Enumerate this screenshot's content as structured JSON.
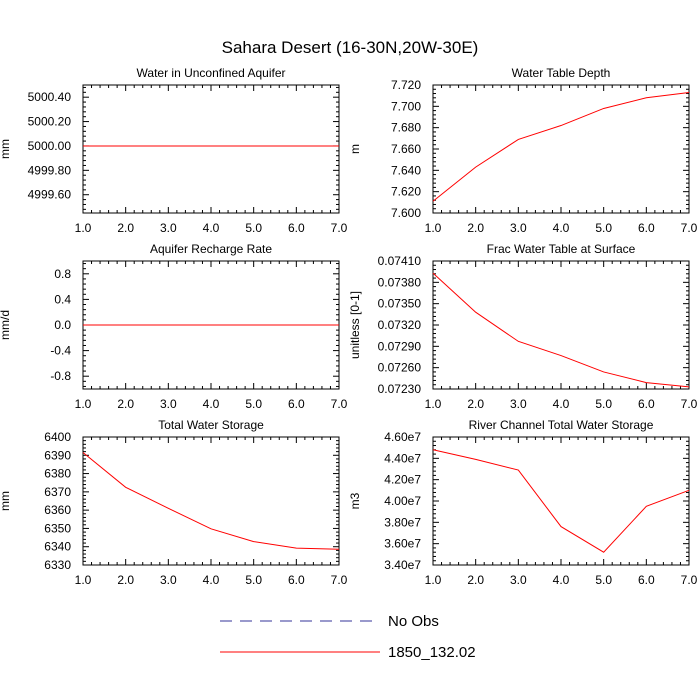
{
  "title": "Sahara Desert (16-30N,20W-30E)",
  "legend": [
    {
      "label": "No Obs",
      "color": "#333399",
      "dash": true
    },
    {
      "label": "1850_132.02",
      "color": "#ff0000",
      "dash": false
    }
  ],
  "chart_data": [
    {
      "type": "line",
      "title": "Water in Unconfined Aquifer",
      "ylabel": "mm",
      "x": [
        1,
        2,
        3,
        4,
        5,
        6,
        7
      ],
      "xticks": [
        "1.0",
        "2.0",
        "3.0",
        "4.0",
        "5.0",
        "6.0",
        "7.0"
      ],
      "xlim": [
        1,
        7
      ],
      "ylim": [
        4999.45,
        5000.5
      ],
      "yticks": [
        4999.6,
        4999.8,
        5000.0,
        5000.2,
        5000.4
      ],
      "yticklabels": [
        "4999.60",
        "4999.80",
        "5000.00",
        "5000.20",
        "5000.40"
      ],
      "series": [
        {
          "name": "1850_132.02",
          "values": [
            5000.0,
            5000.0,
            5000.0,
            5000.0,
            5000.0,
            5000.0,
            5000.0
          ]
        }
      ]
    },
    {
      "type": "line",
      "title": "Water Table Depth",
      "ylabel": "m",
      "x": [
        1,
        2,
        3,
        4,
        5,
        6,
        7
      ],
      "xticks": [
        "1.0",
        "2.0",
        "3.0",
        "4.0",
        "5.0",
        "6.0",
        "7.0"
      ],
      "xlim": [
        1,
        7
      ],
      "ylim": [
        7.6,
        7.72
      ],
      "yticks": [
        7.6,
        7.62,
        7.64,
        7.66,
        7.68,
        7.7,
        7.72
      ],
      "yticklabels": [
        "7.600",
        "7.620",
        "7.640",
        "7.660",
        "7.680",
        "7.700",
        "7.720"
      ],
      "series": [
        {
          "name": "1850_132.02",
          "values": [
            7.611,
            7.643,
            7.669,
            7.682,
            7.698,
            7.708,
            7.713
          ]
        }
      ]
    },
    {
      "type": "line",
      "title": "Aquifer Recharge Rate",
      "ylabel": "mm/d",
      "x": [
        1,
        2,
        3,
        4,
        5,
        6,
        7
      ],
      "xticks": [
        "1.0",
        "2.0",
        "3.0",
        "4.0",
        "5.0",
        "6.0",
        "7.0"
      ],
      "xlim": [
        1,
        7
      ],
      "ylim": [
        -1.0,
        1.0
      ],
      "yticks": [
        -0.8,
        -0.4,
        0.0,
        0.4,
        0.8
      ],
      "yticklabels": [
        "-0.8",
        "-0.4",
        "0.0",
        "0.4",
        "0.8"
      ],
      "series": [
        {
          "name": "1850_132.02",
          "values": [
            0,
            0,
            0,
            0,
            0,
            0,
            0
          ]
        }
      ]
    },
    {
      "type": "line",
      "title": "Frac Water Table at Surface",
      "ylabel": "unitless [0-1]",
      "x": [
        1,
        2,
        3,
        4,
        5,
        6,
        7
      ],
      "xticks": [
        "1.0",
        "2.0",
        "3.0",
        "4.0",
        "5.0",
        "6.0",
        "7.0"
      ],
      "xlim": [
        1,
        7
      ],
      "ylim": [
        0.0723,
        0.0741
      ],
      "yticks": [
        0.0723,
        0.0726,
        0.0729,
        0.0732,
        0.0735,
        0.0738,
        0.0741
      ],
      "yticklabels": [
        "0.07230",
        "0.07260",
        "0.07290",
        "0.07320",
        "0.07350",
        "0.07380",
        "0.07410"
      ],
      "series": [
        {
          "name": "1850_132.02",
          "values": [
            0.07393,
            0.07338,
            0.07297,
            0.07277,
            0.07254,
            0.07239,
            0.07233
          ]
        }
      ]
    },
    {
      "type": "line",
      "title": "Total Water Storage",
      "ylabel": "mm",
      "x": [
        1,
        2,
        3,
        4,
        5,
        6,
        7
      ],
      "xticks": [
        "1.0",
        "2.0",
        "3.0",
        "4.0",
        "5.0",
        "6.0",
        "7.0"
      ],
      "xlim": [
        1,
        7
      ],
      "ylim": [
        6330,
        6400
      ],
      "yticks": [
        6330,
        6340,
        6350,
        6360,
        6370,
        6380,
        6390,
        6400
      ],
      "yticklabels": [
        "6330",
        "6340",
        "6350",
        "6360",
        "6370",
        "6380",
        "6390",
        "6400"
      ],
      "series": [
        {
          "name": "1850_132.02",
          "values": [
            6391.5,
            6372.5,
            6361.0,
            6349.8,
            6342.8,
            6339.2,
            6338.6
          ]
        }
      ]
    },
    {
      "type": "line",
      "title": "River Channel Total Water Storage",
      "ylabel": "m3",
      "x": [
        1,
        2,
        3,
        4,
        5,
        6,
        7
      ],
      "xticks": [
        "1.0",
        "2.0",
        "3.0",
        "4.0",
        "5.0",
        "6.0",
        "7.0"
      ],
      "xlim": [
        1,
        7
      ],
      "ylim": [
        34000000,
        46000000
      ],
      "yticks": [
        34000000,
        36000000,
        38000000,
        40000000,
        42000000,
        44000000,
        46000000
      ],
      "yticklabels": [
        "3.40e7",
        "3.60e7",
        "3.80e7",
        "4.00e7",
        "4.20e7",
        "4.40e7",
        "4.60e7"
      ],
      "series": [
        {
          "name": "1850_132.02",
          "values": [
            44800000,
            43900000,
            42900000,
            37600000,
            35200000,
            39500000,
            41000000
          ]
        }
      ]
    }
  ]
}
